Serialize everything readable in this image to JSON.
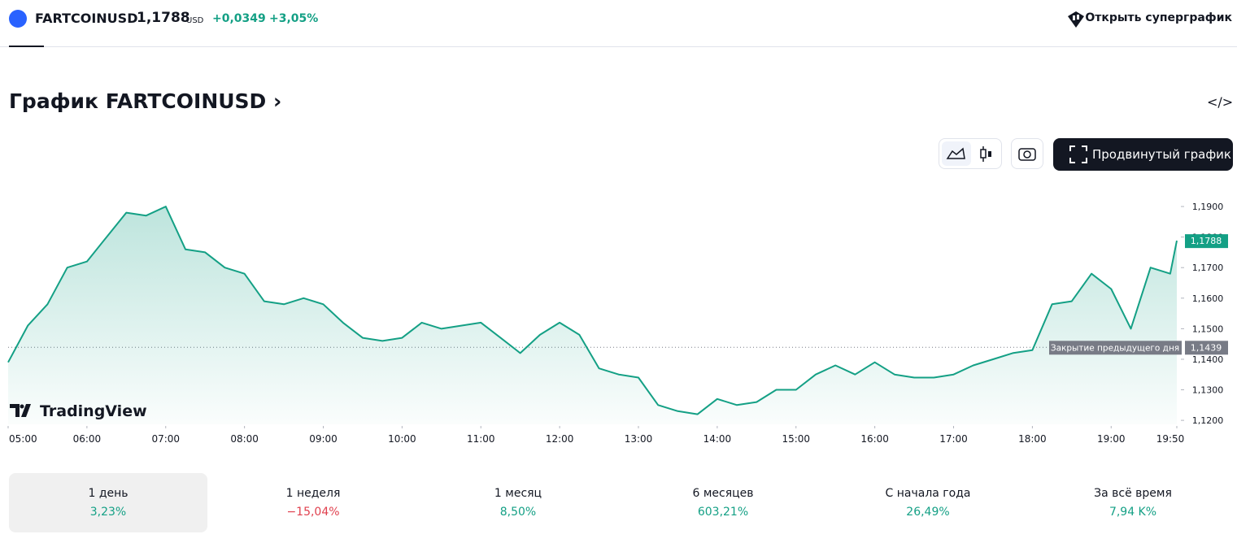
{
  "header": {
    "symbol": "FARTCOINUSD",
    "price": "1,1788",
    "currency": "USD",
    "change": "+0,0349",
    "change_percent": "+3,05%",
    "supergraph_button": "Открыть суперграфик"
  },
  "page_title": "График FARTCOINUSD",
  "toolbar": {
    "advanced_button": "Продвинутый график"
  },
  "chart_data": {
    "type": "line",
    "brand": "TradingView",
    "x": [
      "05:00",
      "05:15",
      "05:30",
      "05:45",
      "06:00",
      "06:15",
      "06:30",
      "06:45",
      "07:00",
      "07:15",
      "07:30",
      "07:45",
      "08:00",
      "08:15",
      "08:30",
      "08:45",
      "09:00",
      "09:15",
      "09:30",
      "09:45",
      "10:00",
      "10:15",
      "10:30",
      "10:45",
      "11:00",
      "11:15",
      "11:30",
      "11:45",
      "12:00",
      "12:15",
      "12:30",
      "12:45",
      "13:00",
      "13:15",
      "13:30",
      "13:45",
      "14:00",
      "14:15",
      "14:30",
      "14:45",
      "15:00",
      "15:15",
      "15:30",
      "15:45",
      "16:00",
      "16:15",
      "16:30",
      "16:45",
      "17:00",
      "17:15",
      "17:30",
      "17:45",
      "18:00",
      "18:15",
      "18:30",
      "18:45",
      "19:00",
      "19:15",
      "19:30",
      "19:45",
      "19:50"
    ],
    "series": [
      {
        "name": "FARTCOINUSD",
        "color": "#14a085",
        "values": [
          1.139,
          1.151,
          1.158,
          1.17,
          1.172,
          1.18,
          1.188,
          1.187,
          1.19,
          1.176,
          1.175,
          1.17,
          1.168,
          1.159,
          1.158,
          1.16,
          1.158,
          1.152,
          1.147,
          1.146,
          1.147,
          1.152,
          1.15,
          1.151,
          1.152,
          1.147,
          1.142,
          1.148,
          1.152,
          1.148,
          1.137,
          1.135,
          1.134,
          1.125,
          1.123,
          1.122,
          1.127,
          1.125,
          1.126,
          1.13,
          1.13,
          1.135,
          1.138,
          1.135,
          1.139,
          1.135,
          1.134,
          1.134,
          1.135,
          1.138,
          1.14,
          1.142,
          1.143,
          1.158,
          1.159,
          1.168,
          1.163,
          1.15,
          1.17,
          1.168,
          1.1788
        ]
      }
    ],
    "xlim": [
      "05:00",
      "19:50"
    ],
    "xticks": [
      "05:00",
      "06:00",
      "07:00",
      "08:00",
      "09:00",
      "10:00",
      "11:00",
      "12:00",
      "13:00",
      "14:00",
      "15:00",
      "16:00",
      "17:00",
      "18:00",
      "19:00",
      "19:50"
    ],
    "ylim": [
      1.1187,
      1.1964
    ],
    "yticks": [
      {
        "value": 1.12,
        "label": "1,1200"
      },
      {
        "value": 1.13,
        "label": "1,1300"
      },
      {
        "value": 1.14,
        "label": "1,1400"
      },
      {
        "value": 1.15,
        "label": "1,1500"
      },
      {
        "value": 1.16,
        "label": "1,1600"
      },
      {
        "value": 1.17,
        "label": "1,1700"
      },
      {
        "value": 1.18,
        "label": "1,1800"
      },
      {
        "value": 1.19,
        "label": "1,1900"
      }
    ],
    "last_price": {
      "value": 1.1788,
      "label": "1,1788"
    },
    "previous_close": {
      "name": "Закрытие предыдущего дня",
      "value": 1.1439,
      "label": "1,1439"
    }
  },
  "periods": [
    {
      "label": "1 день",
      "change": "3,23%",
      "color": "#14a085"
    },
    {
      "label": "1 неделя",
      "change": "−15,04%",
      "color": "#e0404e"
    },
    {
      "label": "1 месяц",
      "change": "8,50%",
      "color": "#14a085"
    },
    {
      "label": "6 месяцев",
      "change": "603,21%",
      "color": "#14a085"
    },
    {
      "label": "С начала года",
      "change": "26,49%",
      "color": "#14a085"
    },
    {
      "label": "За всё время",
      "change": "7,94 K%",
      "color": "#14a085"
    }
  ]
}
